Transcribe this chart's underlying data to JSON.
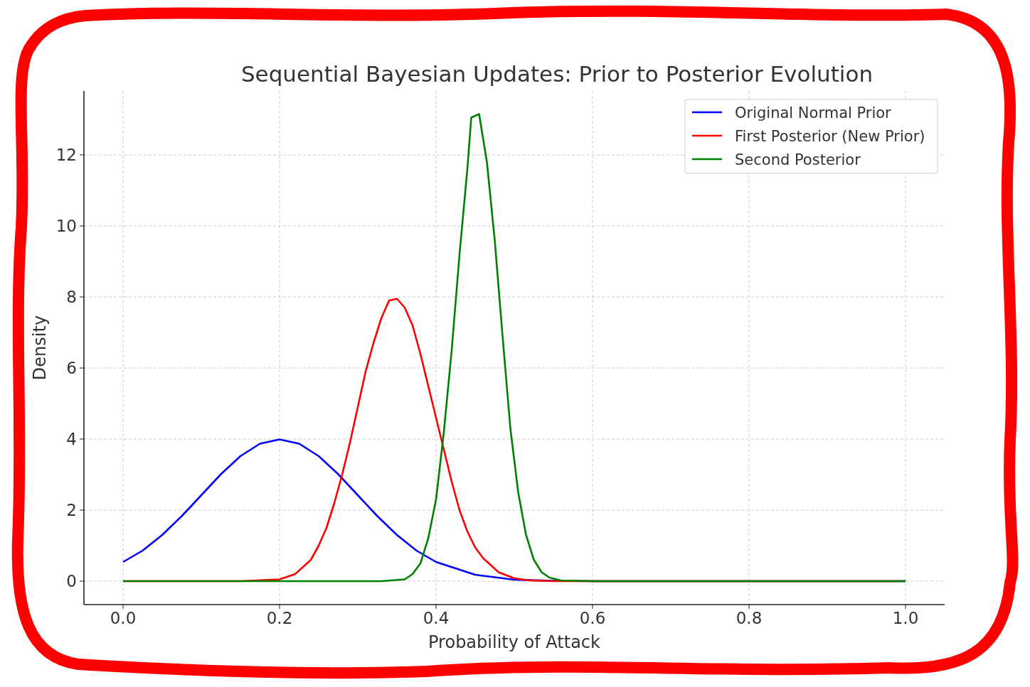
{
  "chart_data": {
    "type": "line",
    "title": "Sequential Bayesian Updates: Prior to Posterior Evolution",
    "xlabel": "Probability of Attack",
    "ylabel": "Density",
    "xlim": [
      -0.05,
      1.05
    ],
    "xticks": [
      {
        "value": 0,
        "label": "0.0"
      },
      {
        "value": 0.2,
        "label": "0.2"
      },
      {
        "value": 0.4,
        "label": "0.4"
      },
      {
        "value": 0.6,
        "label": "0.6"
      },
      {
        "value": 0.8,
        "label": "0.8"
      },
      {
        "value": 1,
        "label": "1.0"
      }
    ],
    "ylim": [
      -0.66,
      13.8
    ],
    "yticks": [
      0,
      2,
      4,
      6,
      8,
      10,
      12
    ],
    "grid": true,
    "legend": "top right",
    "line_style": "solid",
    "marker": "none",
    "series": [
      {
        "name": "Original Normal Prior",
        "color": "#0000ff",
        "x": [
          0,
          0.025,
          0.05,
          0.075,
          0.1,
          0.125,
          0.15,
          0.175,
          0.2,
          0.225,
          0.25,
          0.275,
          0.3,
          0.325,
          0.35,
          0.375,
          0.4,
          0.45,
          0.5,
          0.55,
          0.6,
          1.0
        ],
        "values": [
          0.54,
          0.86,
          1.3,
          1.83,
          2.42,
          3.01,
          3.52,
          3.87,
          3.99,
          3.87,
          3.52,
          3.01,
          2.42,
          1.83,
          1.3,
          0.86,
          0.54,
          0.18,
          0.04,
          0.01,
          0,
          0
        ]
      },
      {
        "name": "First Posterior (New Prior)",
        "color": "#ff0000",
        "x": [
          0,
          0.15,
          0.2,
          0.22,
          0.24,
          0.25,
          0.26,
          0.27,
          0.28,
          0.29,
          0.3,
          0.31,
          0.32,
          0.33,
          0.34,
          0.35,
          0.36,
          0.37,
          0.38,
          0.39,
          0.4,
          0.41,
          0.42,
          0.43,
          0.44,
          0.45,
          0.46,
          0.48,
          0.5,
          0.52,
          0.55,
          0.6,
          1.0
        ],
        "values": [
          0,
          0,
          0.05,
          0.2,
          0.6,
          1.0,
          1.5,
          2.2,
          3.0,
          3.9,
          4.9,
          5.9,
          6.7,
          7.4,
          7.9,
          7.95,
          7.7,
          7.2,
          6.4,
          5.5,
          4.6,
          3.7,
          2.8,
          2.0,
          1.4,
          0.95,
          0.65,
          0.25,
          0.08,
          0.02,
          0,
          0,
          0
        ]
      },
      {
        "name": "Second Posterior",
        "color": "#008000",
        "x": [
          0,
          0.33,
          0.36,
          0.37,
          0.38,
          0.39,
          0.4,
          0.41,
          0.42,
          0.43,
          0.44,
          0.445,
          0.455,
          0.465,
          0.475,
          0.485,
          0.495,
          0.505,
          0.515,
          0.525,
          0.535,
          0.545,
          0.56,
          0.6,
          1.0
        ],
        "values": [
          0,
          0,
          0.05,
          0.2,
          0.5,
          1.2,
          2.3,
          4.2,
          6.5,
          9.2,
          11.6,
          13.05,
          13.15,
          11.8,
          9.6,
          6.9,
          4.3,
          2.5,
          1.3,
          0.6,
          0.25,
          0.1,
          0.02,
          0,
          0
        ]
      }
    ]
  }
}
